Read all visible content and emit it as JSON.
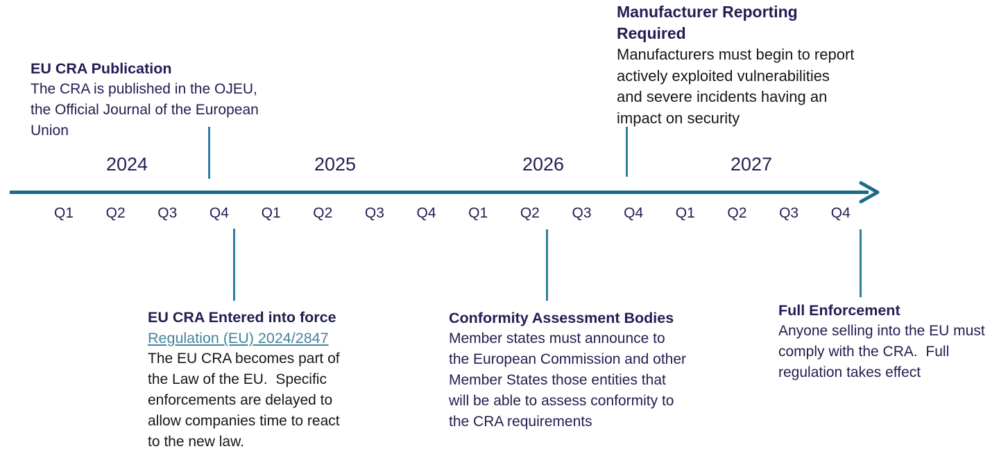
{
  "colors": {
    "timeline": "#1d6a87",
    "connector": "#2e7ea0",
    "heading": "#221d54",
    "link": "#45839a",
    "body_dark": "#201d4e",
    "body_black": "#151515"
  },
  "timeline": {
    "years": [
      "2024",
      "2025",
      "2026",
      "2027"
    ],
    "quarters": [
      "Q1",
      "Q2",
      "Q3",
      "Q4",
      "Q1",
      "Q2",
      "Q3",
      "Q4",
      "Q1",
      "Q2",
      "Q3",
      "Q4",
      "Q1",
      "Q2",
      "Q3",
      "Q4"
    ]
  },
  "events": [
    {
      "id": "eu-cra-publication",
      "title": "EU CRA Publication",
      "body": "The CRA is published in the OJEU,\nthe Official Journal of the European\nUnion"
    },
    {
      "id": "manufacturer-reporting-required",
      "title": "Manufacturer Reporting\nRequired",
      "body": "Manufacturers must begin to report\nactively exploited vulnerabilities\nand severe incidents having an\nimpact on security"
    },
    {
      "id": "eu-cra-entered-into-force",
      "title": "EU CRA Entered into force",
      "link": "Regulation (EU) 2024/2847",
      "body": "The EU CRA becomes part of\nthe Law of the EU.  Specific\nenforcements are delayed to\nallow companies time to react\nto the new law."
    },
    {
      "id": "conformity-assessment-bodies",
      "title": "Conformity Assessment Bodies",
      "body": "Member states must announce to\nthe European Commission and other\nMember States those entities that\nwill be able to assess conformity to\nthe CRA requirements"
    },
    {
      "id": "full-enforcement",
      "title": "Full Enforcement",
      "body": "Anyone selling into the EU must\ncomply with the CRA.  Full\nregulation takes effect"
    }
  ]
}
